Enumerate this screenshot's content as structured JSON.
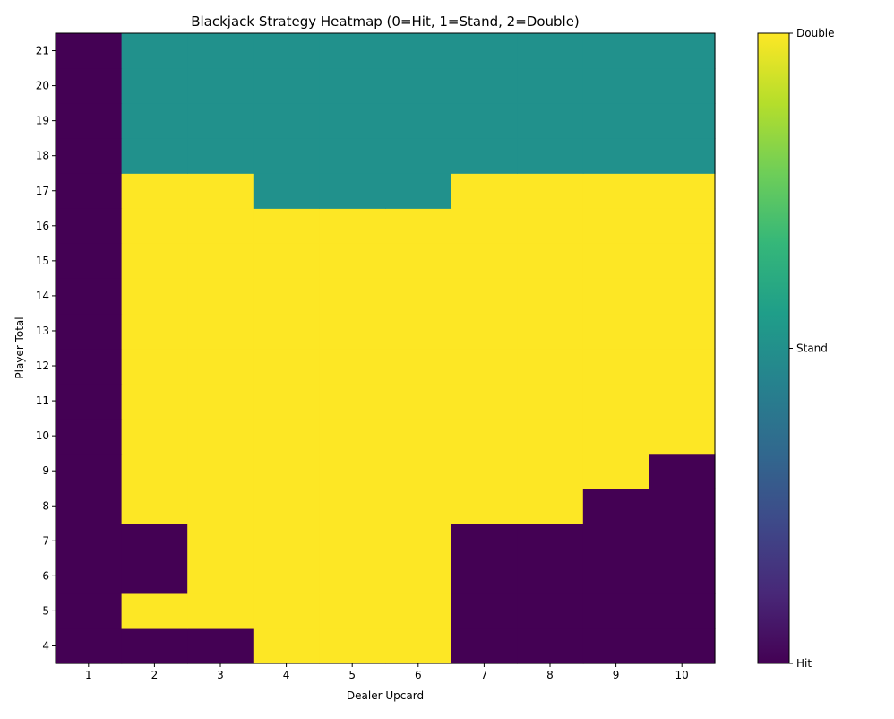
{
  "chart_data": {
    "type": "heatmap",
    "title": "Blackjack Strategy Heatmap (0=Hit, 1=Stand, 2=Double)",
    "xlabel": "Dealer Upcard",
    "ylabel": "Player Total",
    "x": [
      1,
      2,
      3,
      4,
      5,
      6,
      7,
      8,
      9,
      10
    ],
    "y": [
      4,
      5,
      6,
      7,
      8,
      9,
      10,
      11,
      12,
      13,
      14,
      15,
      16,
      17,
      18,
      19,
      20,
      21
    ],
    "values": [
      [
        0,
        0,
        0,
        2,
        2,
        2,
        0,
        0,
        0,
        0
      ],
      [
        0,
        2,
        2,
        2,
        2,
        2,
        0,
        0,
        0,
        0
      ],
      [
        0,
        0,
        2,
        2,
        2,
        2,
        0,
        0,
        0,
        0
      ],
      [
        0,
        0,
        2,
        2,
        2,
        2,
        0,
        0,
        0,
        0
      ],
      [
        0,
        2,
        2,
        2,
        2,
        2,
        2,
        2,
        0,
        0
      ],
      [
        0,
        2,
        2,
        2,
        2,
        2,
        2,
        2,
        2,
        0
      ],
      [
        0,
        2,
        2,
        2,
        2,
        2,
        2,
        2,
        2,
        2
      ],
      [
        0,
        2,
        2,
        2,
        2,
        2,
        2,
        2,
        2,
        2
      ],
      [
        0,
        2,
        2,
        2,
        2,
        2,
        2,
        2,
        2,
        2
      ],
      [
        0,
        2,
        2,
        2,
        2,
        2,
        2,
        2,
        2,
        2
      ],
      [
        0,
        2,
        2,
        2,
        2,
        2,
        2,
        2,
        2,
        2
      ],
      [
        0,
        2,
        2,
        2,
        2,
        2,
        2,
        2,
        2,
        2
      ],
      [
        0,
        2,
        2,
        2,
        2,
        2,
        2,
        2,
        2,
        2
      ],
      [
        0,
        2,
        2,
        1,
        1,
        1,
        2,
        2,
        2,
        2
      ],
      [
        0,
        1,
        1,
        1,
        1,
        1,
        1,
        1,
        1,
        1
      ],
      [
        0,
        1,
        1,
        1,
        1,
        1,
        1,
        1,
        1,
        1
      ],
      [
        0,
        1,
        1,
        1,
        1,
        1,
        1,
        1,
        1,
        1
      ],
      [
        0,
        1,
        1,
        1,
        1,
        1,
        1,
        1,
        1,
        1
      ]
    ],
    "colormap": "viridis",
    "value_range": [
      0,
      2
    ],
    "colors": {
      "0": "#440154",
      "1": "#21918c",
      "2": "#fde725"
    },
    "colorbar": {
      "ticks": [
        0,
        1,
        2
      ],
      "labels": [
        "Hit",
        "Stand",
        "Double"
      ]
    },
    "grid": false
  }
}
